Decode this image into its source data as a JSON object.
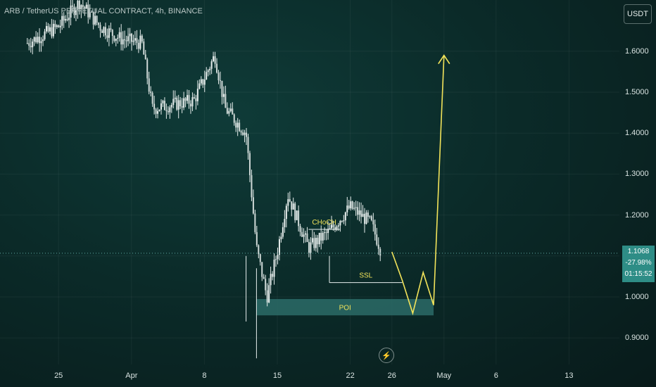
{
  "symbol_label": "ARB / TetherUS PERPETUAL CONTRACT, 4h, BINANCE",
  "currency_button": "USDT",
  "price_tag": {
    "price": "1.1068",
    "change": "-27.98%",
    "countdown": "01:15:52"
  },
  "bolt_icon": "lightning-icon",
  "chart_data": {
    "type": "candlestick",
    "y_ticks": [
      "1.6000",
      "1.5000",
      "1.4000",
      "1.3000",
      "1.2000",
      "1.1000",
      "1.0000",
      "0.9000"
    ],
    "ylim": [
      0.85,
      1.72
    ],
    "x_ticks": [
      "25",
      "Apr",
      "8",
      "15",
      "22",
      "26",
      "May",
      "6",
      "13"
    ],
    "x_tick_dates": [
      "2024-03-25",
      "2024-04-01",
      "2024-04-08",
      "2024-04-15",
      "2024-04-22",
      "2024-04-26",
      "2024-05-01",
      "2024-05-06",
      "2024-05-13"
    ],
    "colors": {
      "up": "#e8efee",
      "down": "#e8efee",
      "annotation": "#f2e35a",
      "poi_box": "#2b6b67",
      "current_line": "#5fa8a2"
    },
    "current_price": 1.1068,
    "price_path_dates": [
      "2024-03-22",
      "2024-03-25",
      "2024-03-27",
      "2024-03-29",
      "2024-03-31",
      "2024-04-02",
      "2024-04-03",
      "2024-04-05",
      "2024-04-07",
      "2024-04-09",
      "2024-04-10",
      "2024-04-12",
      "2024-04-13",
      "2024-04-14",
      "2024-04-15",
      "2024-04-16",
      "2024-04-18",
      "2024-04-20",
      "2024-04-22",
      "2024-04-24",
      "2024-04-25"
    ],
    "price_path_values": [
      1.62,
      1.66,
      1.72,
      1.66,
      1.63,
      1.62,
      1.46,
      1.47,
      1.48,
      1.59,
      1.46,
      1.4,
      1.12,
      1.0,
      1.11,
      1.25,
      1.12,
      1.16,
      1.22,
      1.18,
      1.11
    ],
    "annotations": [
      {
        "label": "CHoCH",
        "kind": "level",
        "price": 1.165,
        "from": "2024-04-18",
        "to": "2024-04-21"
      },
      {
        "label": "SSL",
        "kind": "level",
        "price": 1.035,
        "from": "2024-04-20",
        "to": "2024-04-27"
      },
      {
        "label": "POI",
        "kind": "zone",
        "price_top": 0.995,
        "price_bottom": 0.955,
        "from": "2024-04-13",
        "to": "2024-04-30"
      }
    ],
    "projection_prices": [
      1.11,
      1.04,
      0.96,
      1.06,
      0.98,
      1.59
    ],
    "projection_dates": [
      "2024-04-26",
      "2024-04-27",
      "2024-04-28",
      "2024-04-29",
      "2024-04-30",
      "2024-05-01"
    ]
  }
}
